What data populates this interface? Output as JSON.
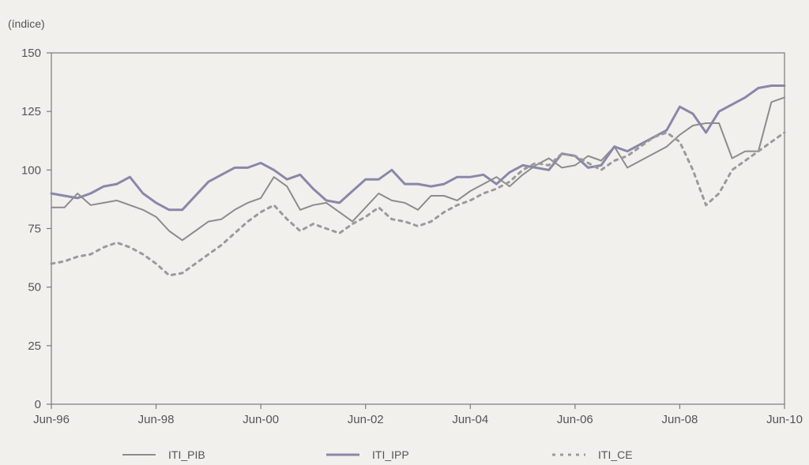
{
  "chart_data": {
    "type": "line",
    "unit_label": "(índice)",
    "x_tick_labels": [
      "Jun-96",
      "Jun-98",
      "Jun-00",
      "Jun-02",
      "Jun-04",
      "Jun-06",
      "Jun-08",
      "Jun-10"
    ],
    "y_ticks": [
      0,
      25,
      50,
      75,
      100,
      125,
      150
    ],
    "ylim": [
      0,
      150
    ],
    "x_unit": "quarters since Jun-96",
    "xlim": [
      0,
      56
    ],
    "grid": false,
    "legend_position": "bottom",
    "series": [
      {
        "name": "ITI_PIB",
        "color": "#8c8c8c",
        "stroke_width": 2,
        "dash": "",
        "x": [
          0,
          1,
          2,
          3,
          4,
          5,
          6,
          7,
          8,
          9,
          10,
          11,
          12,
          13,
          14,
          15,
          16,
          17,
          18,
          19,
          20,
          21,
          22,
          23,
          24,
          25,
          26,
          27,
          28,
          29,
          30,
          31,
          32,
          33,
          34,
          35,
          36,
          37,
          38,
          39,
          40,
          41,
          42,
          43,
          44,
          45,
          46,
          47,
          48,
          49,
          50,
          51,
          52,
          53,
          54,
          55,
          56
        ],
        "y": [
          84,
          84,
          90,
          85,
          86,
          87,
          85,
          83,
          80,
          74,
          70,
          74,
          78,
          79,
          83,
          86,
          88,
          97,
          93,
          83,
          85,
          86,
          82,
          78,
          84,
          90,
          87,
          86,
          83,
          89,
          89,
          87,
          91,
          94,
          97,
          93,
          98,
          102,
          105,
          101,
          102,
          106,
          104,
          110,
          101,
          104,
          107,
          110,
          115,
          119,
          120,
          120,
          105,
          108,
          108,
          129,
          131
        ]
      },
      {
        "name": "ITI_IPP",
        "color": "#8a87a8",
        "stroke_width": 3,
        "dash": "",
        "x": [
          0,
          1,
          2,
          3,
          4,
          5,
          6,
          7,
          8,
          9,
          10,
          11,
          12,
          13,
          14,
          15,
          16,
          17,
          18,
          19,
          20,
          21,
          22,
          23,
          24,
          25,
          26,
          27,
          28,
          29,
          30,
          31,
          32,
          33,
          34,
          35,
          36,
          37,
          38,
          39,
          40,
          41,
          42,
          43,
          44,
          45,
          46,
          47,
          48,
          49,
          50,
          51,
          52,
          53,
          54,
          55,
          56
        ],
        "y": [
          90,
          89,
          88,
          90,
          93,
          94,
          97,
          90,
          86,
          83,
          83,
          89,
          95,
          98,
          101,
          101,
          103,
          100,
          96,
          98,
          92,
          87,
          86,
          91,
          96,
          96,
          100,
          94,
          94,
          93,
          94,
          97,
          97,
          98,
          94,
          99,
          102,
          101,
          100,
          107,
          106,
          101,
          102,
          110,
          108,
          111,
          114,
          117,
          127,
          124,
          116,
          125,
          128,
          131,
          135,
          136,
          136
        ]
      },
      {
        "name": "ITI_CE",
        "color": "#9a9a9a",
        "stroke_width": 3,
        "dash": "4 6",
        "x": [
          0,
          1,
          2,
          3,
          4,
          5,
          6,
          7,
          8,
          9,
          10,
          11,
          12,
          13,
          14,
          15,
          16,
          17,
          18,
          19,
          20,
          21,
          22,
          23,
          24,
          25,
          26,
          27,
          28,
          29,
          30,
          31,
          32,
          33,
          34,
          35,
          36,
          37,
          38,
          39,
          40,
          41,
          42,
          43,
          44,
          45,
          46,
          47,
          48,
          49,
          50,
          51,
          52,
          53,
          54,
          55,
          56
        ],
        "y": [
          60,
          61,
          63,
          64,
          67,
          69,
          67,
          64,
          60,
          55,
          56,
          60,
          64,
          68,
          73,
          78,
          82,
          85,
          79,
          74,
          77,
          75,
          73,
          77,
          80,
          84,
          79,
          78,
          76,
          78,
          82,
          85,
          87,
          90,
          92,
          95,
          100,
          103,
          102,
          107,
          106,
          103,
          100,
          104,
          106,
          110,
          114,
          116,
          112,
          100,
          85,
          90,
          100,
          104,
          108,
          112,
          116
        ]
      }
    ]
  }
}
